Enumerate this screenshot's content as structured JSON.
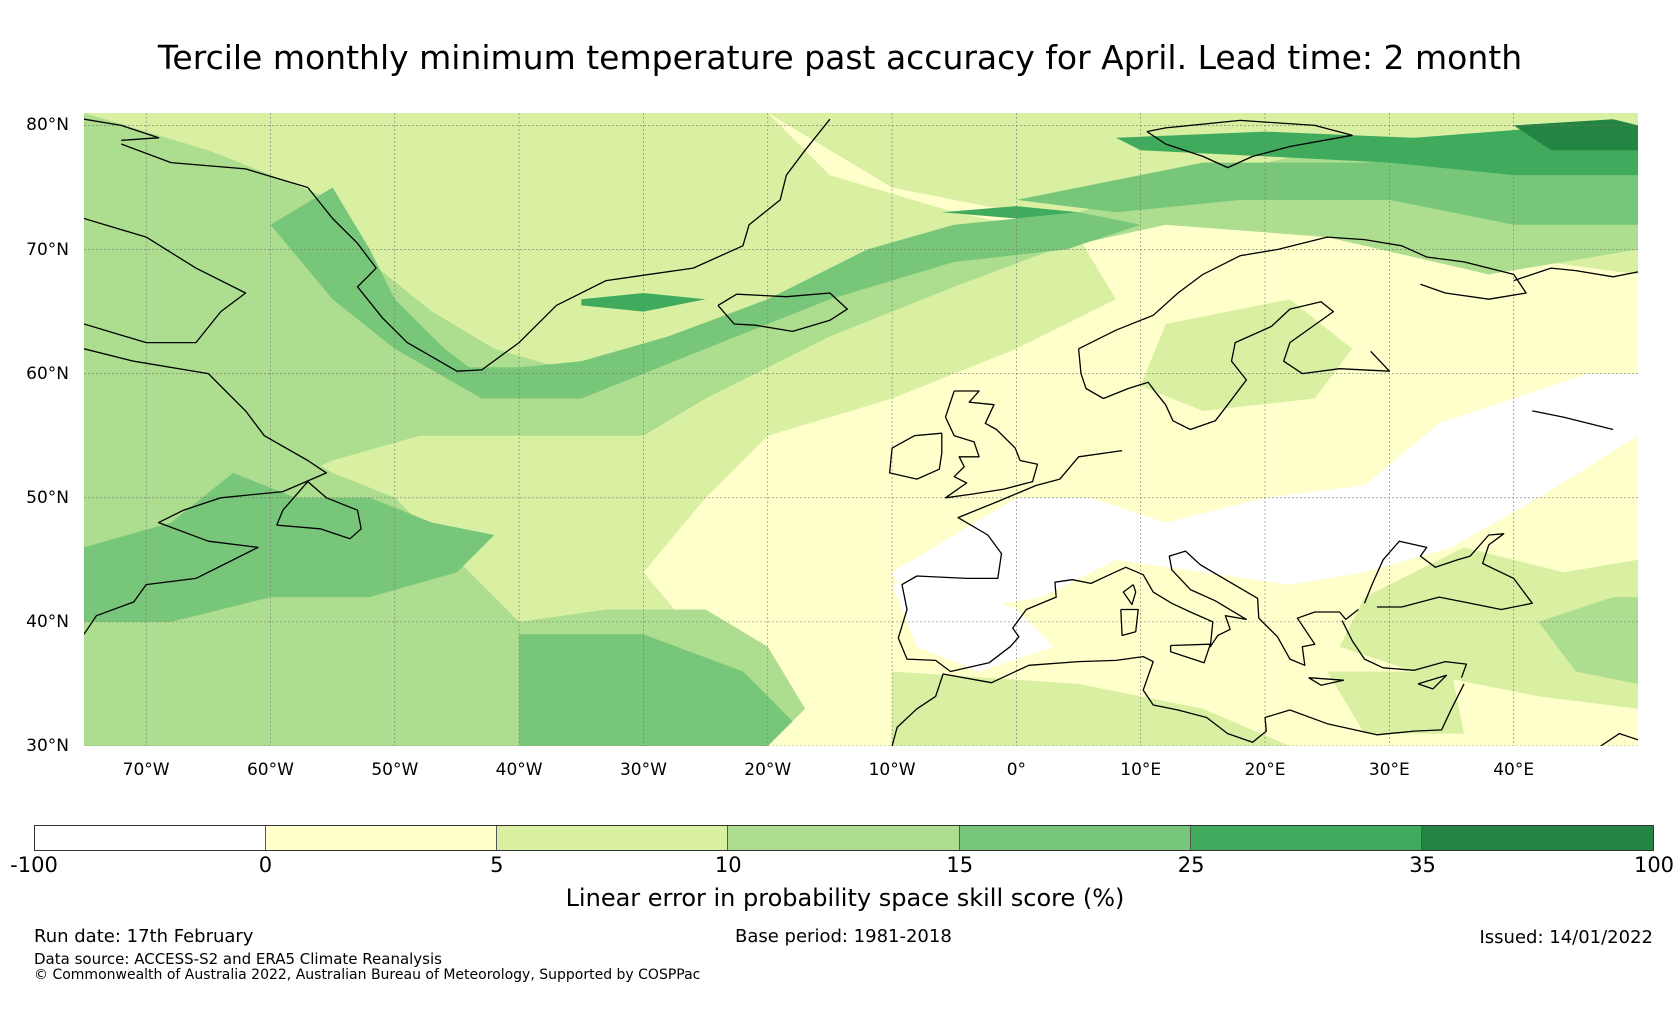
{
  "title": "Tercile monthly minimum temperature past accuracy for April. Lead time: 2 month",
  "map": {
    "projection": "plate-carree",
    "extent": {
      "lon_min": -75,
      "lon_max": 50,
      "lat_min": 30,
      "lat_max": 81
    },
    "latitude_labels": [
      {
        "lat": 80,
        "label": "80°N"
      },
      {
        "lat": 70,
        "label": "70°N"
      },
      {
        "lat": 60,
        "label": "60°N"
      },
      {
        "lat": 50,
        "label": "50°N"
      },
      {
        "lat": 40,
        "label": "40°N"
      },
      {
        "lat": 30,
        "label": "30°N"
      }
    ],
    "longitude_labels": [
      {
        "lon": -70,
        "label": "70°W"
      },
      {
        "lon": -60,
        "label": "60°W"
      },
      {
        "lon": -50,
        "label": "50°W"
      },
      {
        "lon": -40,
        "label": "40°W"
      },
      {
        "lon": -30,
        "label": "30°W"
      },
      {
        "lon": -20,
        "label": "20°W"
      },
      {
        "lon": -10,
        "label": "10°W"
      },
      {
        "lon": 0,
        "label": "0°"
      },
      {
        "lon": 10,
        "label": "10°E"
      },
      {
        "lon": 20,
        "label": "20°E"
      },
      {
        "lon": 30,
        "label": "30°E"
      },
      {
        "lon": 40,
        "label": "40°E"
      }
    ],
    "gridlines": true,
    "background_color": "#ffffcc",
    "coastline_color": "#000000"
  },
  "colorbar": {
    "title": "Linear error in probability space skill score (%)",
    "ticks": [
      "-100",
      "0",
      "5",
      "10",
      "15",
      "25",
      "35",
      "100"
    ],
    "colors": [
      "#ffffff",
      "#ffffcc",
      "#d9f0a3",
      "#addd8e",
      "#78c679",
      "#41ab5d",
      "#238443"
    ]
  },
  "footer": {
    "run_date": "Run date: 17th February",
    "data_source": "Data source: ACCESS-S2 and ERA5 Climate Reanalysis",
    "copyright": "© Commonwealth of Australia 2022, Australian Bureau of Meteorology, Supported by COSPPac",
    "base_period": "Base period: 1981-2018",
    "issued": "Issued: 14/01/2022"
  }
}
